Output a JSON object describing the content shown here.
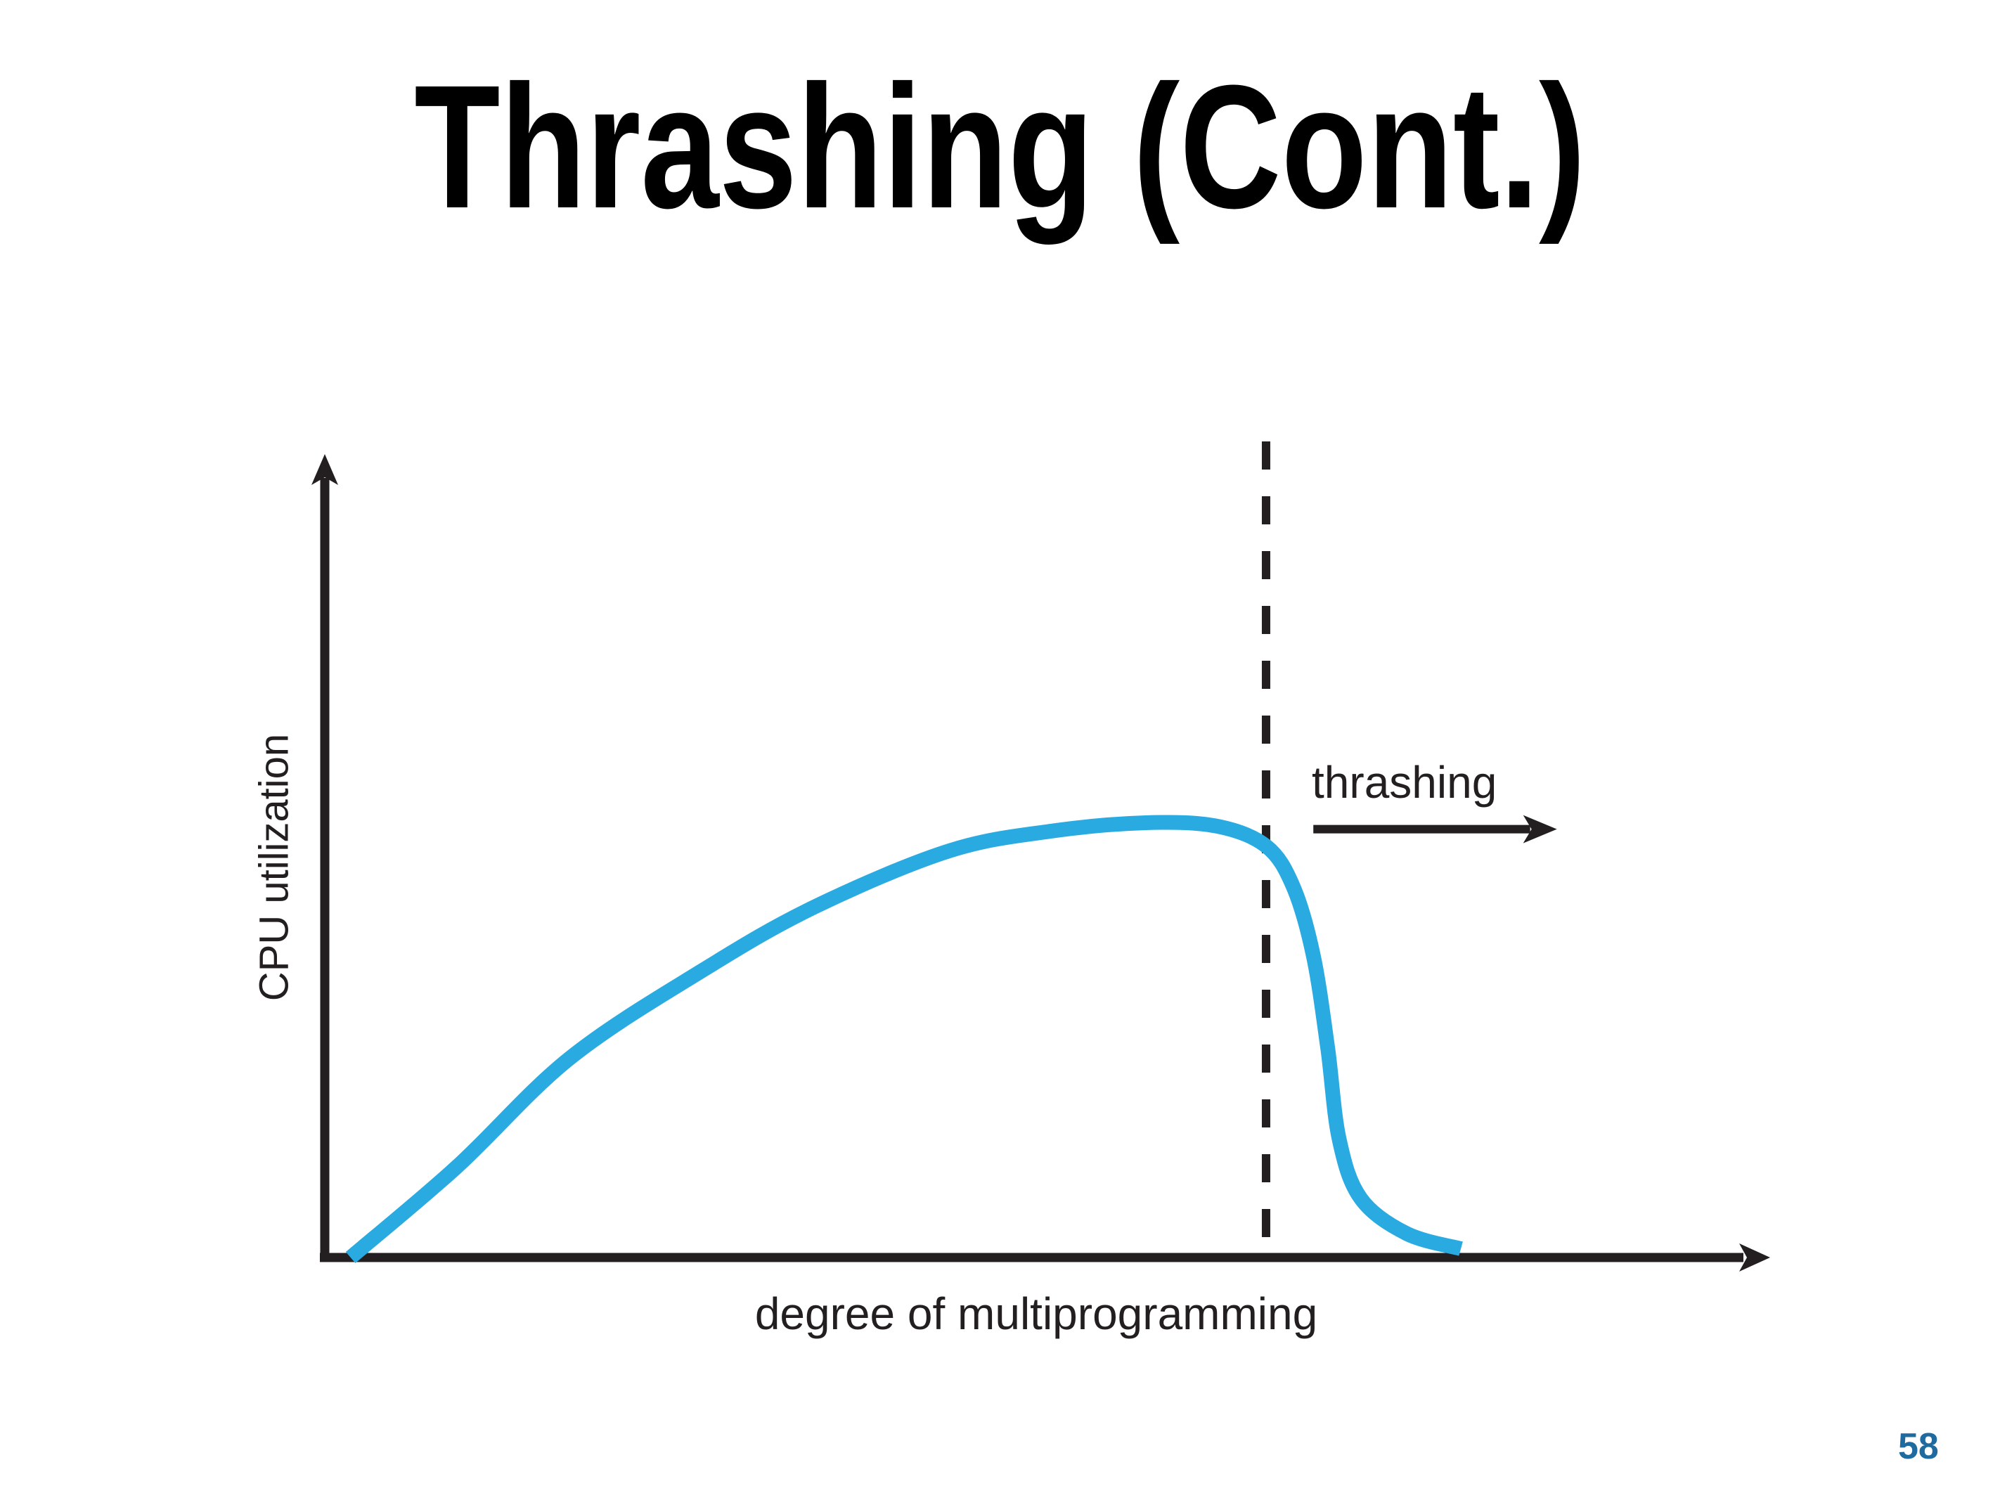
{
  "slide": {
    "title": "Thrashing (Cont.)",
    "page_number": "58"
  },
  "colors": {
    "background": "#FFFFFF",
    "title_text": "#000000",
    "axis": "#231F20",
    "curve": "#29ABE2",
    "page_number": "#1F6B9F"
  },
  "chart_data": {
    "type": "line",
    "title": "Thrashing (Cont.)",
    "xlabel": "degree of multiprogramming",
    "ylabel": "CPU utilization",
    "xlim": [
      0,
      100
    ],
    "ylim": [
      0,
      100
    ],
    "grid": false,
    "ticks": "none",
    "legend": "none",
    "annotations": {
      "thrashing_label": "thrashing",
      "dashed_line_x": 65.7,
      "thrashing_arrow": {
        "x_start": 69,
        "x_end": 86,
        "y": 53.5
      }
    },
    "series": [
      {
        "name": "CPU utilization vs degree of multiprogramming",
        "color": "#29ABE2",
        "points": [
          [
            1.8,
            0
          ],
          [
            9.2,
            11.3
          ],
          [
            17.1,
            24.9
          ],
          [
            26.4,
            35.9
          ],
          [
            34.2,
            43.8
          ],
          [
            43.6,
            50.8
          ],
          [
            50.9,
            53.3
          ],
          [
            57.3,
            54.3
          ],
          [
            62.2,
            53.9
          ],
          [
            65.7,
            51.4
          ],
          [
            67.6,
            46.3
          ],
          [
            69,
            37.7
          ],
          [
            70,
            26.2
          ],
          [
            70.8,
            14.8
          ],
          [
            72.3,
            7.4
          ],
          [
            75.5,
            3
          ],
          [
            79.3,
            1.1
          ]
        ]
      }
    ]
  }
}
